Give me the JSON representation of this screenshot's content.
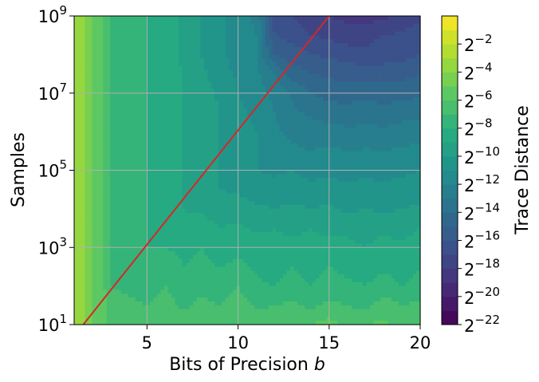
{
  "chart_data": {
    "type": "heatmap",
    "style": "filled-contour",
    "xlabel": "Bits of Precision",
    "xlabel_italic_suffix": "b",
    "ylabel": "Samples",
    "colorbar_label": "Trace Distance",
    "colormap": "viridis",
    "xlim": [
      1,
      20
    ],
    "ylim_log10": [
      1,
      9
    ],
    "y_scale": "log10",
    "x_ticks": [
      5,
      10,
      15,
      20
    ],
    "y_ticks": [
      {
        "base": "10",
        "exp": "1",
        "log10": 1
      },
      {
        "base": "10",
        "exp": "3",
        "log10": 3
      },
      {
        "base": "10",
        "exp": "5",
        "log10": 5
      },
      {
        "base": "10",
        "exp": "7",
        "log10": 7
      },
      {
        "base": "10",
        "exp": "9",
        "log10": 9
      }
    ],
    "grid": true,
    "colorbar_range_log2": [
      -22,
      0
    ],
    "colorbar_levels": 22,
    "colorbar_ticks": [
      {
        "base": "2",
        "exp": "−22",
        "log2": -22
      },
      {
        "base": "2",
        "exp": "−20",
        "log2": -20
      },
      {
        "base": "2",
        "exp": "−18",
        "log2": -18
      },
      {
        "base": "2",
        "exp": "−16",
        "log2": -16
      },
      {
        "base": "2",
        "exp": "−14",
        "log2": -14
      },
      {
        "base": "2",
        "exp": "−12",
        "log2": -12
      },
      {
        "base": "2",
        "exp": "−10",
        "log2": -10
      },
      {
        "base": "2",
        "exp": "−8",
        "log2": -8
      },
      {
        "base": "2",
        "exp": "−6",
        "log2": -6
      },
      {
        "base": "2",
        "exp": "−4",
        "log2": -4
      },
      {
        "base": "2",
        "exp": "−2",
        "log2": -2
      }
    ],
    "x_values": [
      1,
      1.5,
      2,
      2.5,
      3,
      4,
      5,
      6,
      7,
      8,
      9,
      10,
      11,
      12,
      13,
      14,
      15,
      16,
      17,
      18,
      19,
      20
    ],
    "y_values_log10": [
      1,
      1.5,
      2,
      2.5,
      3,
      3.5,
      4,
      4.5,
      5,
      5.5,
      6,
      6.5,
      7,
      7.5,
      8,
      8.5,
      9
    ],
    "z_log2": [
      [
        -3.0,
        -4.0,
        -5.0,
        -5.5,
        -6.2,
        -6.0,
        -6.5,
        -6.0,
        -6.5,
        -6.3,
        -6.0,
        -6.5,
        -6.0,
        -6.5,
        -6.2,
        -6.0,
        -5.5,
        -6.5,
        -6.0,
        -5.8,
        -6.5,
        -6.2
      ],
      [
        -3.0,
        -4.0,
        -5.0,
        -5.5,
        -6.5,
        -6.8,
        -7.0,
        -6.5,
        -7.2,
        -6.8,
        -7.0,
        -6.5,
        -7.2,
        -7.0,
        -6.8,
        -7.2,
        -6.8,
        -7.0,
        -7.3,
        -6.5,
        -7.0,
        -6.8
      ],
      [
        -3.0,
        -4.0,
        -5.0,
        -5.5,
        -7.0,
        -7.2,
        -7.5,
        -7.0,
        -7.8,
        -7.2,
        -7.5,
        -7.0,
        -7.8,
        -8.0,
        -7.6,
        -8.0,
        -7.5,
        -7.8,
        -8.0,
        -7.6,
        -8.0,
        -7.8
      ],
      [
        -3.0,
        -4.0,
        -5.0,
        -5.8,
        -7.0,
        -7.5,
        -7.8,
        -7.5,
        -8.0,
        -7.8,
        -8.0,
        -7.8,
        -8.2,
        -8.5,
        -8.0,
        -8.4,
        -8.0,
        -8.3,
        -8.5,
        -8.2,
        -8.4,
        -8.0
      ],
      [
        -3.0,
        -4.0,
        -5.0,
        -6.0,
        -7.0,
        -7.5,
        -8.0,
        -8.0,
        -8.2,
        -8.0,
        -8.5,
        -8.2,
        -8.5,
        -8.8,
        -8.5,
        -8.7,
        -8.5,
        -8.8,
        -9.0,
        -8.6,
        -8.8,
        -8.5
      ],
      [
        -3.0,
        -4.0,
        -5.0,
        -6.0,
        -7.0,
        -7.5,
        -8.0,
        -8.5,
        -8.8,
        -8.5,
        -9.0,
        -8.8,
        -9.2,
        -9.0,
        -9.3,
        -9.0,
        -9.4,
        -9.2,
        -9.5,
        -9.2,
        -9.4,
        -9.0
      ],
      [
        -3.0,
        -4.0,
        -5.0,
        -6.0,
        -7.0,
        -7.5,
        -8.0,
        -8.5,
        -9.0,
        -9.2,
        -9.5,
        -9.5,
        -9.8,
        -10.0,
        -9.8,
        -10.0,
        -9.8,
        -10.2,
        -10.0,
        -10.2,
        -10.0,
        -9.8
      ],
      [
        -3.0,
        -4.0,
        -5.0,
        -6.0,
        -7.0,
        -7.5,
        -8.0,
        -8.5,
        -9.0,
        -9.5,
        -10.0,
        -10.2,
        -10.5,
        -10.6,
        -10.5,
        -10.8,
        -10.6,
        -10.8,
        -10.7,
        -10.8,
        -10.6,
        -10.5
      ],
      [
        -3.0,
        -4.0,
        -5.0,
        -6.0,
        -7.0,
        -7.5,
        -8.0,
        -8.5,
        -9.0,
        -9.5,
        -10.0,
        -10.5,
        -11.0,
        -11.2,
        -11.0,
        -11.3,
        -11.2,
        -11.4,
        -11.2,
        -11.3,
        -11.2,
        -11.0
      ],
      [
        -3.0,
        -4.0,
        -5.0,
        -6.0,
        -7.0,
        -7.5,
        -8.0,
        -8.5,
        -9.0,
        -9.5,
        -10.0,
        -10.5,
        -11.0,
        -11.5,
        -11.8,
        -12.0,
        -11.8,
        -12.0,
        -11.9,
        -12.0,
        -11.8,
        -11.7
      ],
      [
        -3.0,
        -4.0,
        -5.0,
        -6.0,
        -7.0,
        -7.5,
        -8.0,
        -8.5,
        -9.0,
        -9.5,
        -10.0,
        -10.5,
        -11.0,
        -11.8,
        -12.3,
        -12.5,
        -12.6,
        -12.8,
        -12.7,
        -12.8,
        -12.6,
        -12.5
      ],
      [
        -3.0,
        -4.0,
        -5.0,
        -6.0,
        -7.0,
        -7.5,
        -8.0,
        -8.5,
        -9.0,
        -9.5,
        -10.0,
        -10.8,
        -11.2,
        -12.0,
        -12.8,
        -13.2,
        -13.5,
        -13.6,
        -13.5,
        -13.6,
        -13.4,
        -13.3
      ],
      [
        -3.0,
        -4.0,
        -5.0,
        -6.0,
        -7.0,
        -7.5,
        -8.0,
        -8.5,
        -9.0,
        -9.5,
        -10.2,
        -11.0,
        -11.5,
        -12.3,
        -13.2,
        -14.0,
        -14.4,
        -14.5,
        -14.3,
        -14.5,
        -14.4,
        -14.2
      ],
      [
        -3.0,
        -4.0,
        -5.0,
        -6.0,
        -7.0,
        -7.5,
        -8.0,
        -8.5,
        -9.0,
        -9.8,
        -10.5,
        -11.2,
        -11.8,
        -13.0,
        -14.5,
        -15.0,
        -15.2,
        -15.4,
        -15.3,
        -15.5,
        -15.3,
        -15.0
      ],
      [
        -3.0,
        -4.0,
        -5.0,
        -6.0,
        -7.0,
        -7.5,
        -8.0,
        -8.5,
        -9.2,
        -10.0,
        -10.8,
        -11.5,
        -12.0,
        -15.0,
        -15.5,
        -16.0,
        -16.2,
        -16.5,
        -16.8,
        -16.5,
        -16.4,
        -16.0
      ],
      [
        -3.0,
        -4.0,
        -5.0,
        -6.0,
        -7.0,
        -7.5,
        -8.0,
        -8.5,
        -9.2,
        -10.0,
        -10.8,
        -11.5,
        -12.0,
        -16.0,
        -16.5,
        -17.0,
        -17.2,
        -17.5,
        -17.3,
        -17.0,
        -16.8,
        -16.5
      ],
      [
        -3.0,
        -4.0,
        -5.0,
        -6.0,
        -7.0,
        -7.5,
        -8.0,
        -8.5,
        -9.2,
        -10.0,
        -10.8,
        -11.5,
        -12.2,
        -16.5,
        -17.0,
        -17.5,
        -18.0,
        -18.3,
        -18.5,
        -18.2,
        -17.8,
        -17.2
      ]
    ],
    "line": {
      "color": "#d62728",
      "x": [
        1.5,
        15
      ],
      "y_log10": [
        1,
        9
      ]
    }
  }
}
